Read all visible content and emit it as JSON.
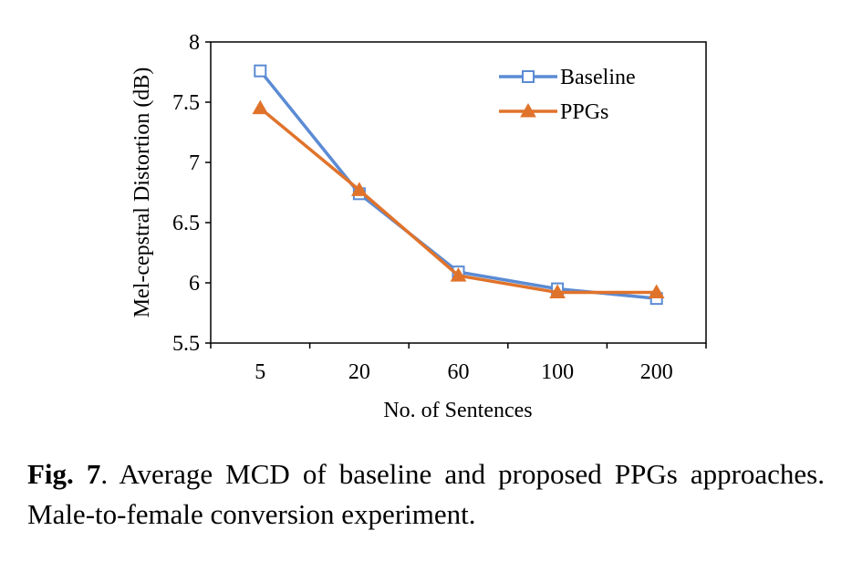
{
  "chart_data": {
    "type": "line",
    "categories": [
      "5",
      "20",
      "60",
      "100",
      "200"
    ],
    "series": [
      {
        "name": "Baseline",
        "values": [
          7.76,
          6.74,
          6.09,
          5.95,
          5.87
        ],
        "color": "#5b8bd4",
        "marker": "square-open"
      },
      {
        "name": "PPGs",
        "values": [
          7.45,
          6.77,
          6.06,
          5.92,
          5.92
        ],
        "color": "#e0732b",
        "marker": "triangle-filled"
      }
    ],
    "xlabel": "No. of Sentences",
    "ylabel": "Mel-cepstral Distortion (dB)",
    "ylim": [
      5.5,
      8
    ],
    "yticks": [
      "5.5",
      "6",
      "6.5",
      "7",
      "7.5",
      "8"
    ],
    "grid": false,
    "legend": "top-right"
  },
  "caption": {
    "fig_label": "Fig. 7",
    "text": ".   Average MCD of baseline and proposed PPGs approaches. Male-to-female conversion experiment."
  }
}
